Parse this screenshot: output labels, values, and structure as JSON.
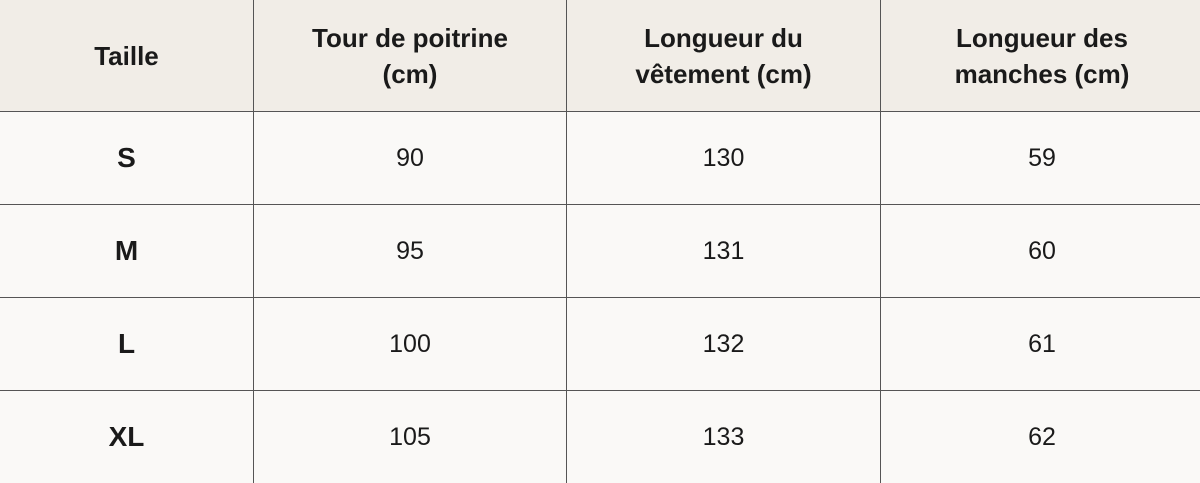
{
  "table": {
    "header": [
      "Taille",
      "Tour de poitrine (cm)",
      "Longueur du vêtement (cm)",
      "Longueur des manches (cm)"
    ],
    "rows": [
      [
        "S",
        "90",
        "130",
        "59"
      ],
      [
        "M",
        "95",
        "131",
        "60"
      ],
      [
        "L",
        "100",
        "132",
        "61"
      ],
      [
        "XL",
        "105",
        "133",
        "62"
      ]
    ]
  }
}
